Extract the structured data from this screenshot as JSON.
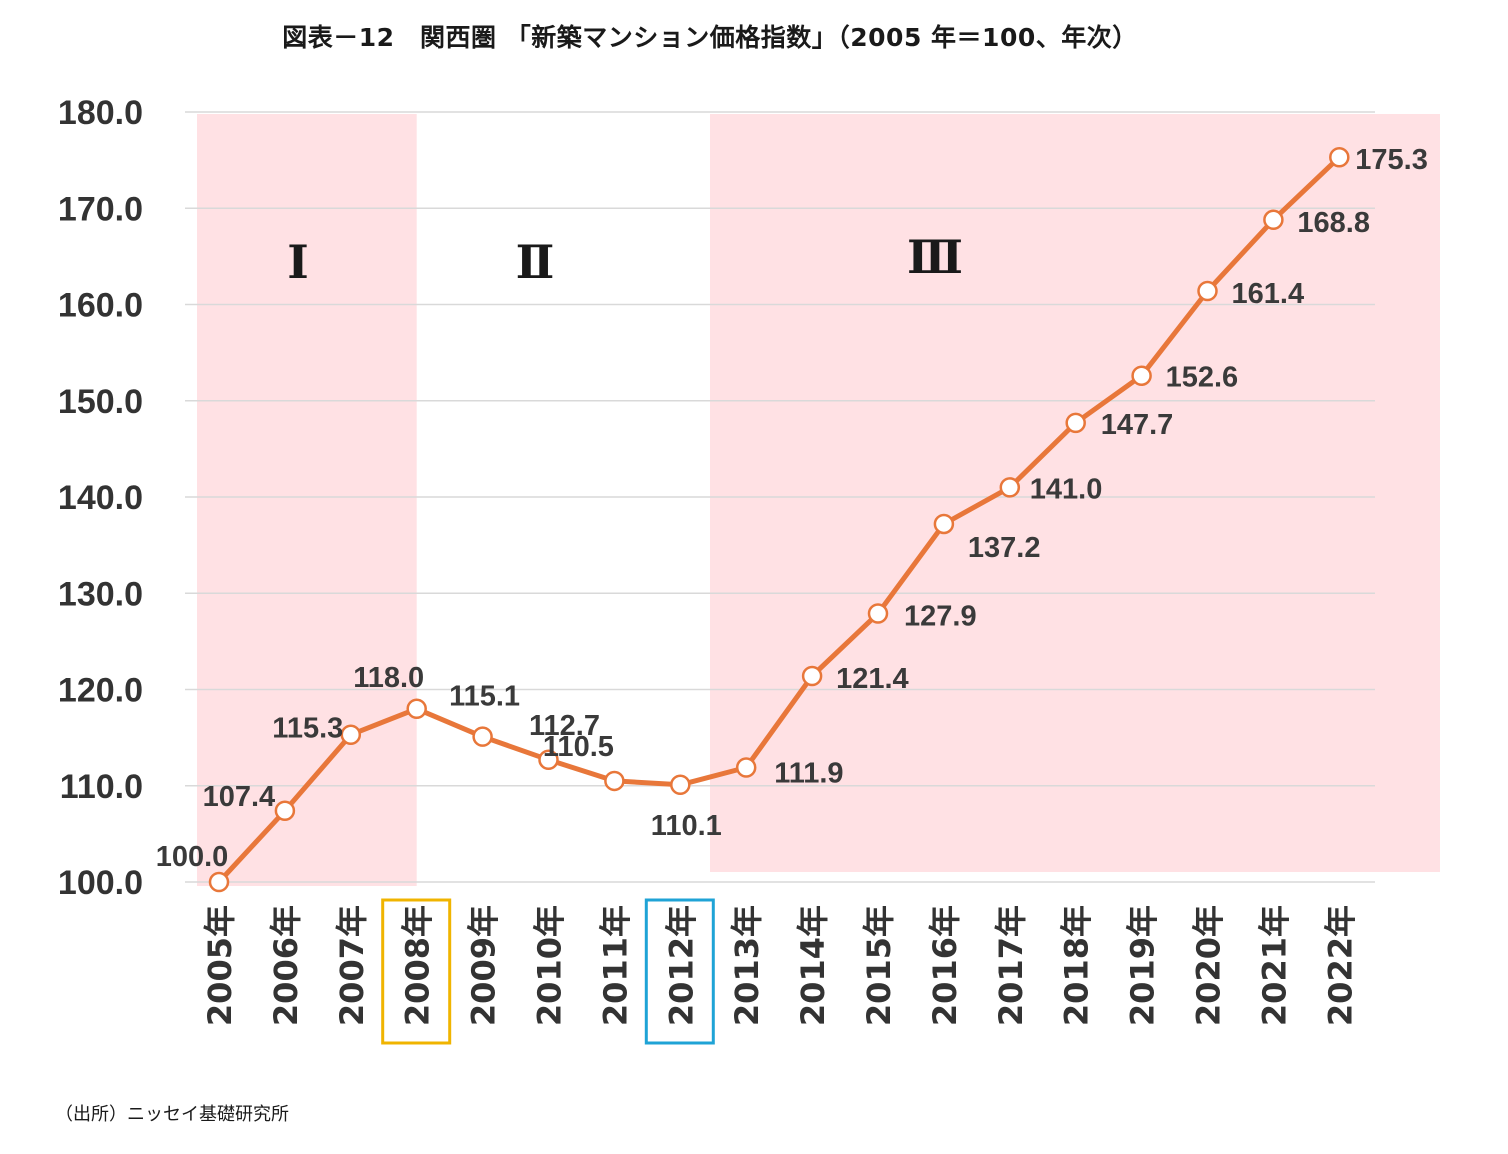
{
  "title": "図表－12　関西圏 「新築マンション価格指数」（2005 年＝100、年次）",
  "source": "（出所）ニッセイ基礎研究所",
  "colors": {
    "line": "#e8773a",
    "marker_fill": "#ffffff",
    "shade": "#ffe1e4",
    "grid": "#d9d9d9",
    "highlight_2008": "#f0b400",
    "highlight_2012": "#1fa3d6"
  },
  "chart_data": {
    "type": "line",
    "title": "図表－12　関西圏 「新築マンション価格指数」（2005 年＝100、年次）",
    "xlabel": "",
    "ylabel": "",
    "ylim": [
      100,
      180
    ],
    "y_ticks": [
      "100.0",
      "110.0",
      "120.0",
      "130.0",
      "140.0",
      "150.0",
      "160.0",
      "170.0",
      "180.0"
    ],
    "categories": [
      "2005年",
      "2006年",
      "2007年",
      "2008年",
      "2009年",
      "2010年",
      "2011年",
      "2012年",
      "2013年",
      "2014年",
      "2015年",
      "2016年",
      "2017年",
      "2018年",
      "2019年",
      "2020年",
      "2021年",
      "2022年"
    ],
    "values": [
      100.0,
      107.4,
      115.3,
      118.0,
      115.1,
      112.7,
      110.5,
      110.1,
      111.9,
      121.4,
      127.9,
      137.2,
      141.0,
      147.7,
      152.6,
      161.4,
      168.8,
      175.3
    ],
    "value_labels": [
      "100.0",
      "107.4",
      "115.3",
      "118.0",
      "115.1",
      "112.7",
      "110.5",
      "110.1",
      "111.9",
      "121.4",
      "127.9",
      "137.2",
      "141.0",
      "147.7",
      "152.6",
      "161.4",
      "168.8",
      "175.3"
    ],
    "grid": true,
    "legend": "none",
    "phases": [
      {
        "label": "Ⅰ",
        "start": "2005年",
        "end": "2008年",
        "shaded": true
      },
      {
        "label": "Ⅱ",
        "start": "2008年",
        "end": "2012年",
        "shaded": false
      },
      {
        "label": "Ⅲ",
        "start": "2012年",
        "end": "2022年",
        "shaded": true
      }
    ],
    "highlighted_categories": [
      "2008年",
      "2012年"
    ]
  }
}
